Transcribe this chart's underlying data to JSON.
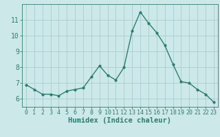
{
  "x": [
    0,
    1,
    2,
    3,
    4,
    5,
    6,
    7,
    8,
    9,
    10,
    11,
    12,
    13,
    14,
    15,
    16,
    17,
    18,
    19,
    20,
    21,
    22,
    23
  ],
  "y": [
    6.9,
    6.6,
    6.3,
    6.3,
    6.2,
    6.5,
    6.6,
    6.7,
    7.4,
    8.1,
    7.5,
    7.2,
    8.0,
    10.3,
    11.5,
    10.8,
    10.2,
    9.4,
    8.2,
    7.1,
    7.0,
    6.6,
    6.3,
    5.8
  ],
  "line_color": "#2d7d6e",
  "marker": "o",
  "markersize": 2.0,
  "linewidth": 1.0,
  "bg_color": "#cce8e8",
  "grid_color": "#aacccc",
  "xlabel": "Humidex (Indice chaleur)",
  "xlim": [
    -0.5,
    23.5
  ],
  "ylim": [
    5.5,
    12.0
  ],
  "yticks": [
    6,
    7,
    8,
    9,
    10,
    11
  ],
  "xticks": [
    0,
    1,
    2,
    3,
    4,
    5,
    6,
    7,
    8,
    9,
    10,
    11,
    12,
    13,
    14,
    15,
    16,
    17,
    18,
    19,
    20,
    21,
    22,
    23
  ],
  "tick_color": "#2d7d6e",
  "label_color": "#2d7d6e",
  "xlabel_fontsize": 7.5,
  "tick_fontsize": 6.0,
  "ytick_fontsize": 7.0,
  "spine_color": "#2d7d6e"
}
